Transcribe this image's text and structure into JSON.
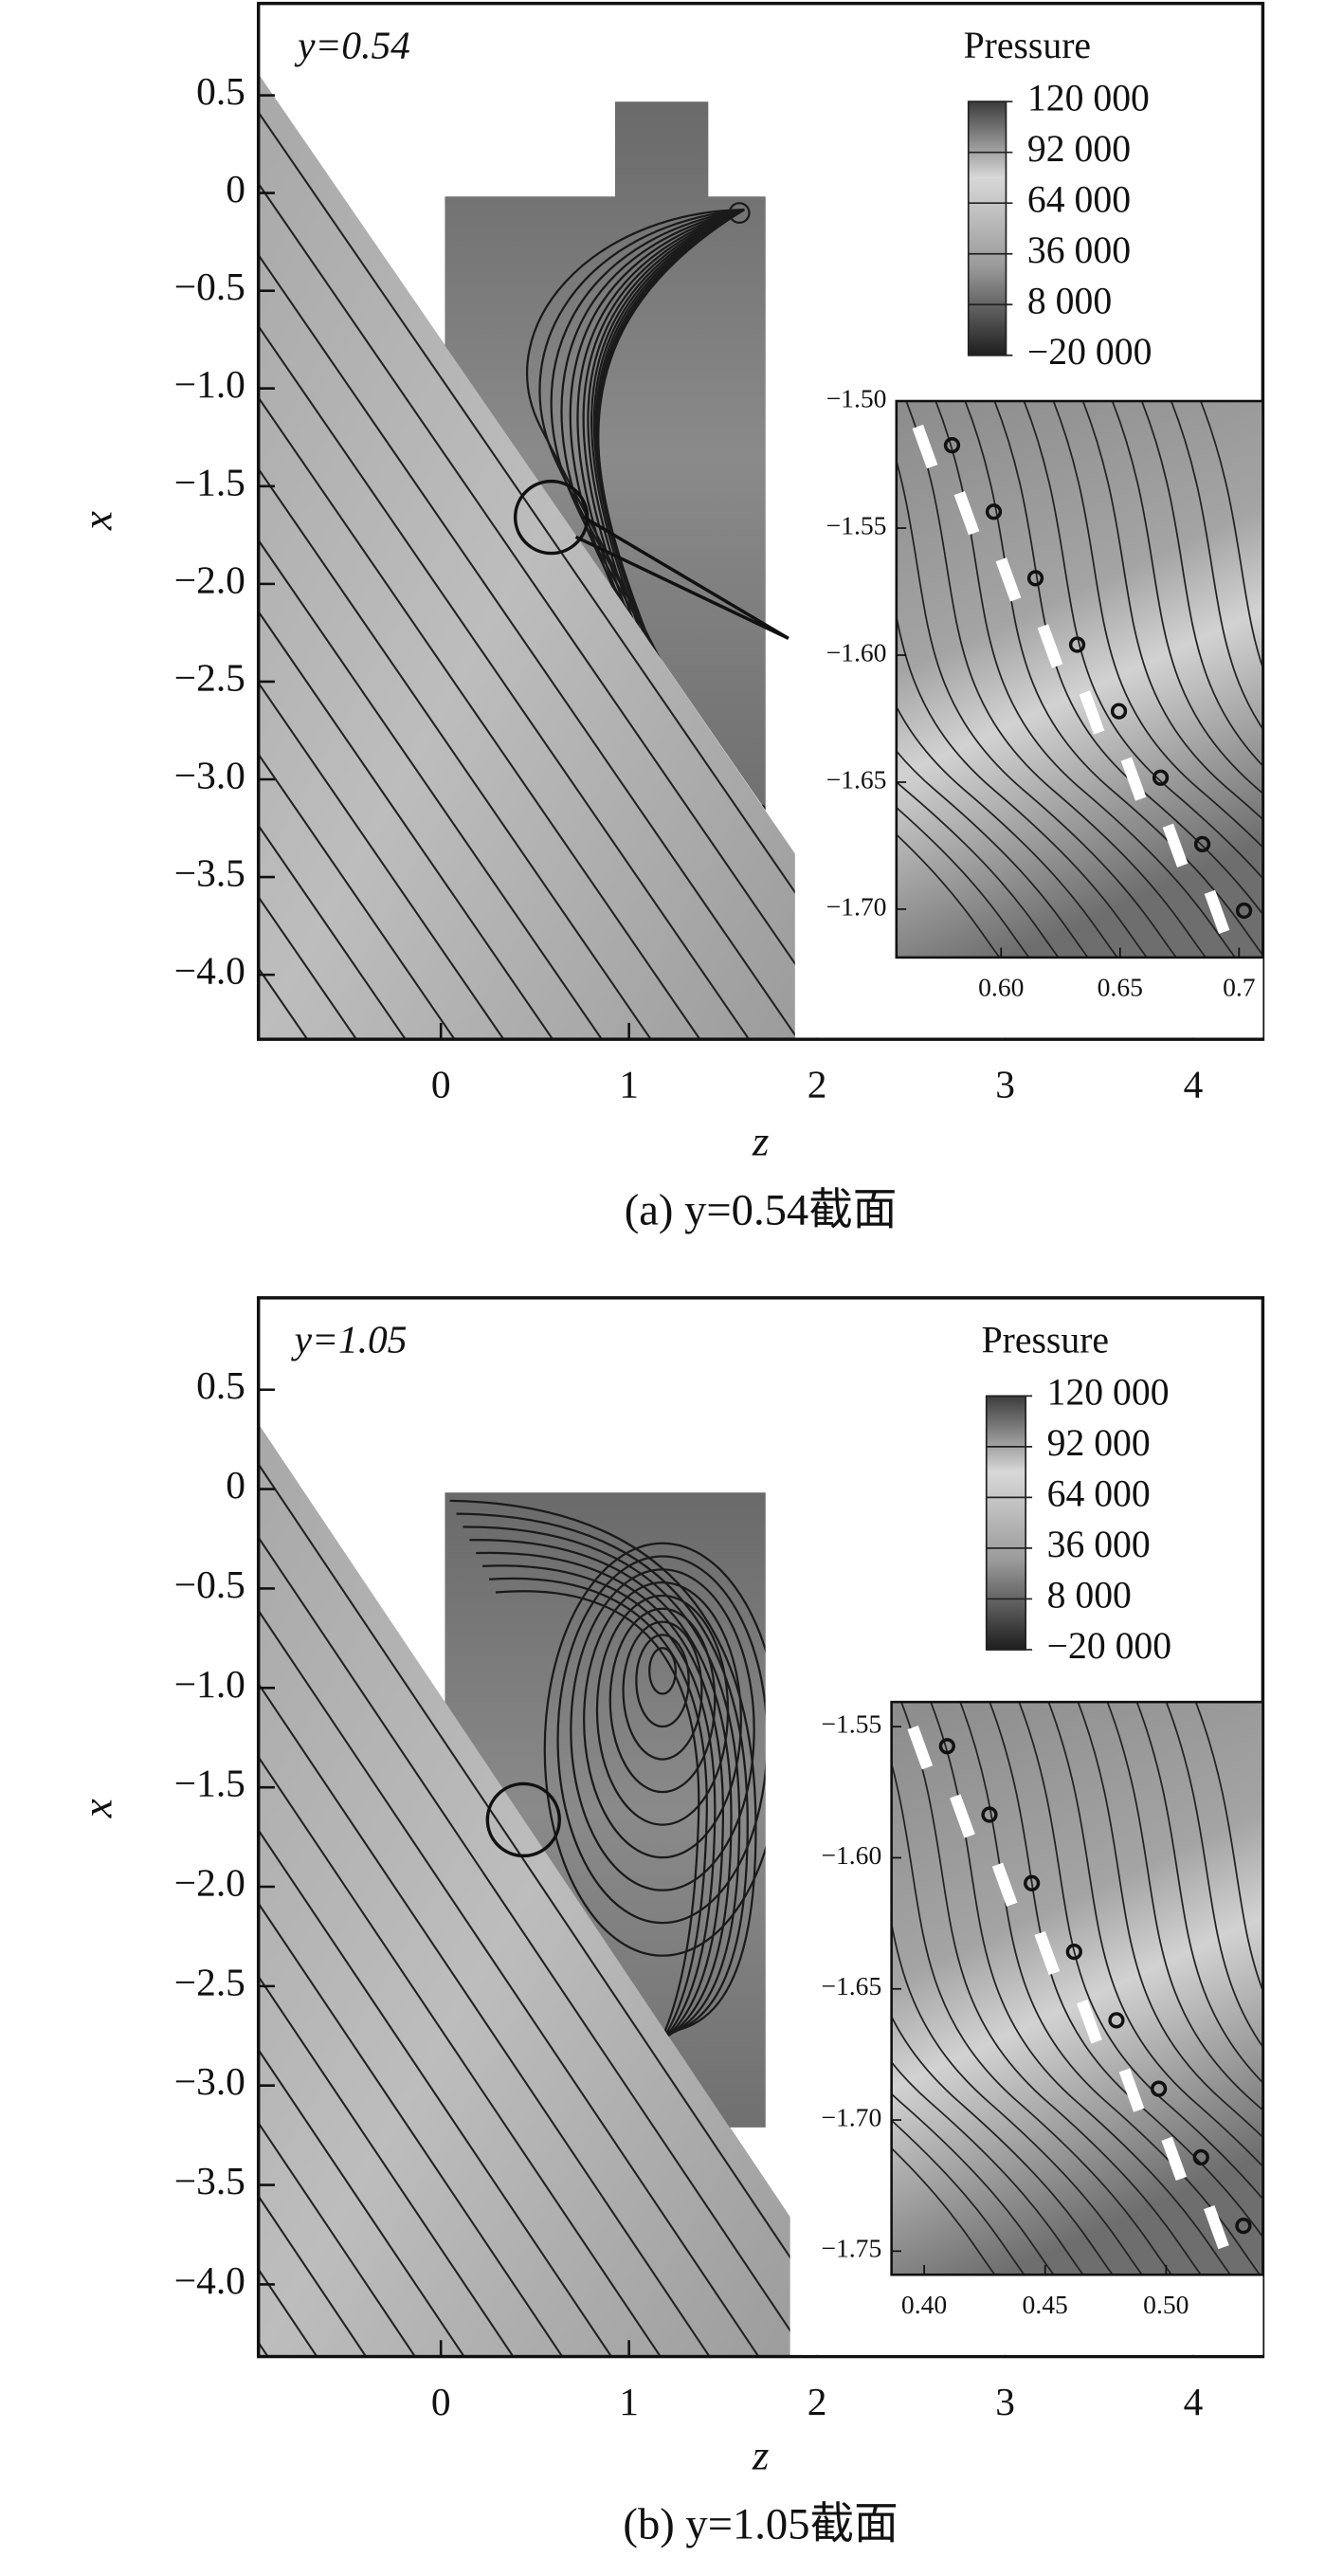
{
  "chart_data": [
    {
      "type": "contour",
      "annotation": "y=0.54",
      "caption": "(a) y=0.54截面",
      "x_label": "z",
      "y_label": "x",
      "xlim": [
        -0.97,
        4.37
      ],
      "ylim": [
        -4.33,
        0.97
      ],
      "xticks": [
        0,
        1,
        2,
        3,
        4
      ],
      "yticks": [
        0.5,
        0,
        {
          "value": -0.5,
          "label": "−0.5"
        },
        {
          "value": -1.0,
          "label": "−1.0"
        },
        {
          "value": -1.5,
          "label": "−1.5"
        },
        {
          "value": -2.0,
          "label": "−2.0"
        },
        {
          "value": -2.5,
          "label": "−2.5"
        },
        {
          "value": -3.0,
          "label": "−3.0"
        },
        {
          "value": -3.5,
          "label": "−3.5"
        },
        {
          "value": -4.0,
          "label": "−4.0"
        }
      ],
      "colorbar": {
        "title": "Pressure",
        "lim": [
          -20000,
          120000
        ],
        "ticks": [
          {
            "value": 120000,
            "label": "120 000"
          },
          {
            "value": 92000,
            "label": "92 000"
          },
          {
            "value": 64000,
            "label": "64 000"
          },
          {
            "value": 36000,
            "label": "36 000"
          },
          {
            "value": 8000,
            "label": "8 000"
          },
          {
            "value": -20000,
            "label": "−20 000"
          }
        ]
      },
      "inset": {
        "xlim": [
          0.556,
          0.71
        ],
        "ylim": [
          -1.719,
          -1.5
        ],
        "xticks": [
          {
            "value": 0.6,
            "label": "0.60"
          },
          0.65,
          0.7
        ],
        "yticks": [
          {
            "value": -1.5,
            "label": "−1.50"
          },
          {
            "value": -1.55,
            "label": "−1.55"
          },
          {
            "value": -1.6,
            "label": "−1.60"
          },
          {
            "value": -1.65,
            "label": "−1.65"
          },
          {
            "value": -1.7,
            "label": "−1.70"
          }
        ]
      }
    },
    {
      "type": "contour",
      "annotation": "y=1.05",
      "caption": "(b) y=1.05截面",
      "x_label": "z",
      "y_label": "x",
      "xlim": [
        -0.97,
        4.37
      ],
      "ylim": [
        -4.363,
        0.962
      ],
      "xticks": [
        0,
        1,
        2,
        3,
        4
      ],
      "yticks": [
        0.5,
        0,
        {
          "value": -0.5,
          "label": "−0.5"
        },
        {
          "value": -1.0,
          "label": "−1.0"
        },
        {
          "value": -1.5,
          "label": "−1.5"
        },
        {
          "value": -2.0,
          "label": "−2.0"
        },
        {
          "value": -2.5,
          "label": "−2.5"
        },
        {
          "value": -3.0,
          "label": "−3.0"
        },
        {
          "value": -3.5,
          "label": "−3.5"
        },
        {
          "value": -4.0,
          "label": "−4.0"
        }
      ],
      "colorbar": {
        "title": "Pressure",
        "lim": [
          -20000,
          120000
        ],
        "ticks": [
          {
            "value": 120000,
            "label": "120 000"
          },
          {
            "value": 92000,
            "label": "92 000"
          },
          {
            "value": 64000,
            "label": "64 000"
          },
          {
            "value": 36000,
            "label": "36 000"
          },
          {
            "value": 8000,
            "label": "8 000"
          },
          {
            "value": -20000,
            "label": "−20 000"
          }
        ]
      },
      "inset": {
        "xlim": [
          0.3865,
          0.54
        ],
        "ylim": [
          -1.759,
          -1.5406
        ],
        "xticks": [
          {
            "value": 0.4,
            "label": "0.40"
          },
          0.45,
          {
            "value": 0.5,
            "label": "0.50"
          }
        ],
        "yticks": [
          {
            "value": -1.55,
            "label": "−1.55"
          },
          {
            "value": -1.6,
            "label": "−1.60"
          },
          {
            "value": -1.65,
            "label": "−1.65"
          },
          {
            "value": -1.7,
            "label": "−1.70"
          },
          {
            "value": -1.75,
            "label": "−1.75"
          }
        ]
      }
    }
  ]
}
